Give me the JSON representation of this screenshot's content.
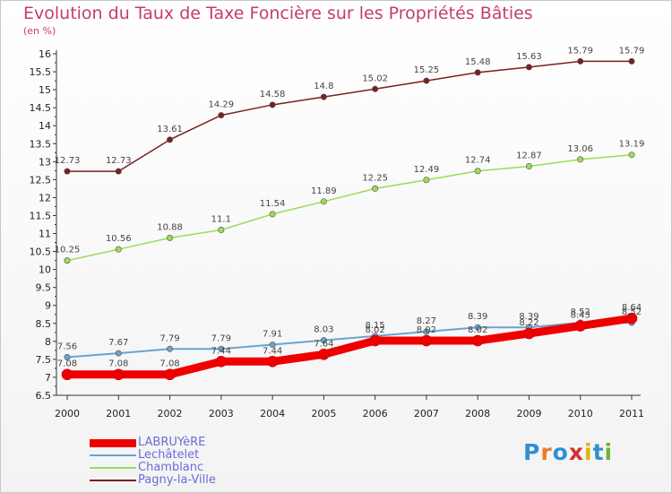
{
  "title": "Evolution du Taux de Taxe Foncière sur les Propriétés Bâties",
  "subtitle": "(en %)",
  "logo": {
    "text": "Proxiti",
    "letters": [
      "P",
      "r",
      "o",
      "x",
      "i",
      "t",
      "i"
    ],
    "colors": [
      "#2f8fd3",
      "#e87d26",
      "#2f8fd3",
      "#d12f2f",
      "#e0b400",
      "#2f8fd3",
      "#6db33f"
    ]
  },
  "chart_data": {
    "type": "line",
    "title": "Evolution du Taux de Taxe Foncière sur les Propriétés Bâties",
    "ylabel": "(en %)",
    "xlabel": "",
    "categories": [
      "2000",
      "2001",
      "2002",
      "2003",
      "2004",
      "2005",
      "2006",
      "2007",
      "2008",
      "2009",
      "2010",
      "2011"
    ],
    "ylim": [
      6.5,
      16
    ],
    "yticks": [
      "6.5",
      "7",
      "7.5",
      "8",
      "8.5",
      "9",
      "9.5",
      "10",
      "10.5",
      "11",
      "11.5",
      "12",
      "12.5",
      "13",
      "13.5",
      "14",
      "14.5",
      "15",
      "15.5",
      "16"
    ],
    "legend_position": "bottom-left",
    "series": [
      {
        "name": "LABRUYèRE",
        "color": "#ee0000",
        "width": 9,
        "values": [
          7.08,
          7.08,
          7.08,
          7.44,
          7.44,
          7.64,
          8.02,
          8.02,
          8.02,
          8.22,
          8.43,
          8.64
        ],
        "labels": [
          "7.08",
          "7.08",
          "7.08",
          "7.44",
          "7.44",
          "7.64",
          "8.02",
          "8.02",
          "8.02",
          "8.22",
          "8.43",
          "8.64"
        ]
      },
      {
        "name": "Lechâtelet",
        "color": "#6aa3cf",
        "width": 2,
        "values": [
          7.56,
          7.67,
          7.79,
          7.79,
          7.91,
          8.03,
          8.15,
          8.27,
          8.39,
          8.39,
          8.52,
          8.52
        ],
        "labels": [
          "7.56",
          "7.67",
          "7.79",
          "7.79",
          "7.91",
          "8.03",
          "8.15",
          "8.27",
          "8.39",
          "8.39",
          "8.52",
          "8.52"
        ]
      },
      {
        "name": "Chamblanc",
        "color": "#99dd55",
        "width": 1.5,
        "values": [
          10.25,
          10.56,
          10.88,
          11.1,
          11.54,
          11.89,
          12.25,
          12.49,
          12.74,
          12.87,
          13.06,
          13.19
        ],
        "labels": [
          "10.25",
          "10.56",
          "10.88",
          "11.1",
          "11.54",
          "11.89",
          "12.25",
          "12.49",
          "12.74",
          "12.87",
          "13.06",
          "13.19"
        ]
      },
      {
        "name": "Pagny-la-Ville",
        "color": "#7a1f1f",
        "width": 1.5,
        "values": [
          12.73,
          12.73,
          13.61,
          14.29,
          14.58,
          14.8,
          15.02,
          15.25,
          15.48,
          15.63,
          15.79,
          15.79
        ],
        "labels": [
          "12.73",
          "12.73",
          "13.61",
          "14.29",
          "14.58",
          "14.8",
          "15.02",
          "15.25",
          "15.48",
          "15.63",
          "15.79",
          "15.79"
        ]
      }
    ]
  }
}
